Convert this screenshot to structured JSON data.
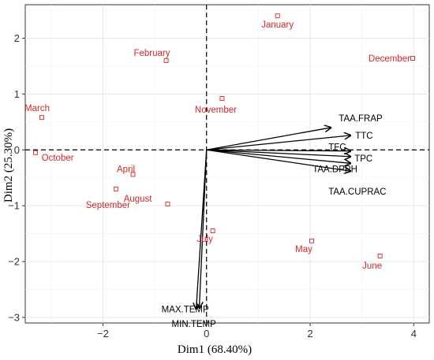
{
  "chart_data": {
    "type": "scatter",
    "title": "",
    "xlabel": "Dim1 (68.40%)",
    "ylabel": "Dim2 (25.30%)",
    "xlim": [
      -3.5,
      4.3
    ],
    "ylim": [
      -3.1,
      2.6
    ],
    "xticks": [
      -2,
      0,
      2,
      4
    ],
    "yticks": [
      -3,
      -2,
      -1,
      0,
      1,
      2
    ],
    "xtick_labels": [
      "−2",
      "0",
      "2",
      "4"
    ],
    "ytick_labels": [
      "−3",
      "−2",
      "−1",
      "0",
      "1",
      "2"
    ],
    "grid": true,
    "reference_lines": [
      {
        "axis": "x",
        "value": 0
      },
      {
        "axis": "y",
        "value": 0
      }
    ],
    "point_color": "#d62728",
    "arrow_color": "#000000",
    "points": [
      {
        "label": "January",
        "x": 1.37,
        "y": 2.4
      },
      {
        "label": "February",
        "x": -0.78,
        "y": 1.6
      },
      {
        "label": "March",
        "x": -3.18,
        "y": 0.58
      },
      {
        "label": "October",
        "x": -3.3,
        "y": -0.05
      },
      {
        "label": "April",
        "x": -1.42,
        "y": -0.44
      },
      {
        "label": "September",
        "x": -1.75,
        "y": -0.7
      },
      {
        "label": "August",
        "x": -0.75,
        "y": -0.97
      },
      {
        "label": "July",
        "x": 0.12,
        "y": -1.45
      },
      {
        "label": "November",
        "x": 0.3,
        "y": 0.92
      },
      {
        "label": "May",
        "x": 2.03,
        "y": -1.63
      },
      {
        "label": "June",
        "x": 3.35,
        "y": -1.9
      },
      {
        "label": "December",
        "x": 3.98,
        "y": 1.64
      }
    ],
    "vectors": [
      {
        "label": "TAA.FRAP",
        "x": 2.4,
        "y": 0.4
      },
      {
        "label": "TTC",
        "x": 2.78,
        "y": 0.26
      },
      {
        "label": "TFC",
        "x": 2.78,
        "y": -0.02
      },
      {
        "label": "TPC",
        "x": 2.78,
        "y": -0.12
      },
      {
        "label": "TAA.DPPH",
        "x": 2.78,
        "y": -0.24
      },
      {
        "label": "TAA.CUPRAC",
        "x": 2.78,
        "y": -0.38
      },
      {
        "label": "MAX.TEMP",
        "x": -0.2,
        "y": -2.85
      },
      {
        "label": "MIN.TEMP",
        "x": -0.14,
        "y": -2.83
      }
    ]
  }
}
